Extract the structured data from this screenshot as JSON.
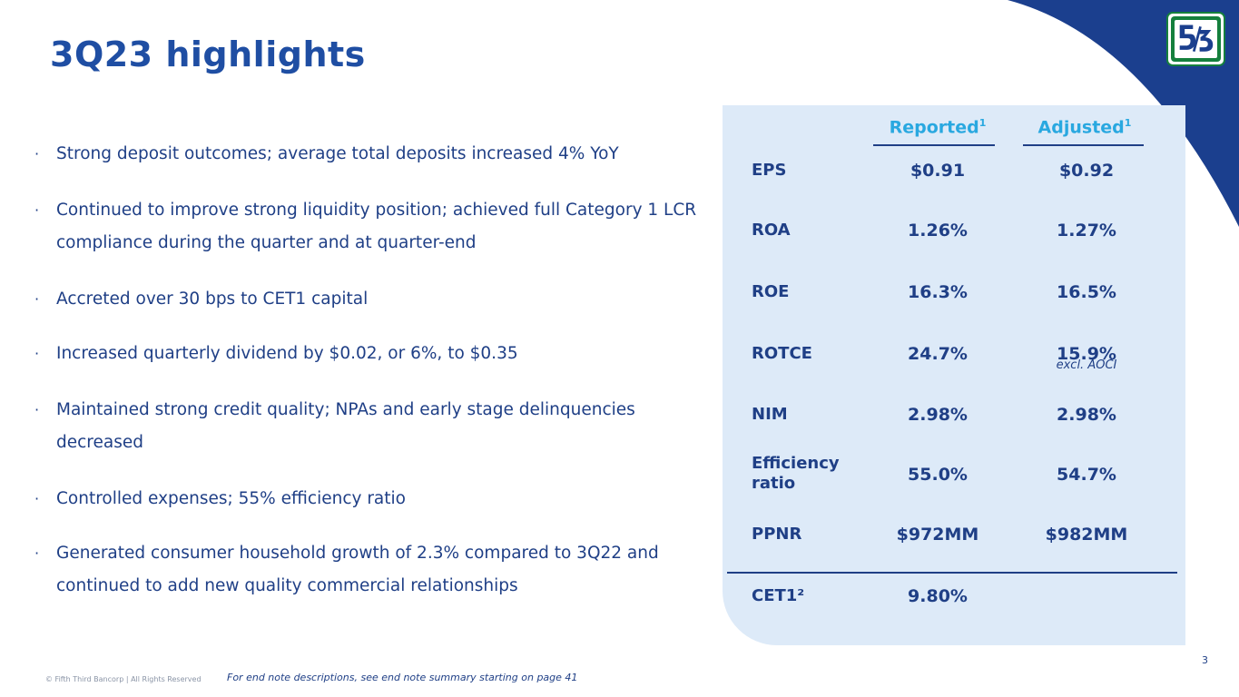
{
  "title": "3Q23 highlights",
  "brand": {
    "navy": "#1b3f8e",
    "green": "#15803d",
    "accent": "#29a8e0",
    "panel": "#ddeaf8"
  },
  "bullets": [
    "Strong deposit outcomes; average total deposits increased 4% YoY",
    "Continued to improve strong liquidity position; achieved full Category 1 LCR compliance during the quarter and at quarter-end",
    "Accreted over 30 bps to CET1 capital",
    "Increased quarterly dividend by $0.02, or 6%, to $0.35",
    "Maintained strong credit quality; NPAs and early stage delinquencies decreased",
    "Controlled expenses; 55% efficiency ratio",
    "Generated consumer household growth of 2.3% compared to 3Q22 and continued to add new quality commercial relationships"
  ],
  "table": {
    "headers": {
      "reported": "Reported",
      "reported_sup": "1",
      "adjusted": "Adjusted",
      "adjusted_sup": "1"
    },
    "rows": [
      {
        "label": "EPS",
        "reported": "$0.91",
        "adjusted": "$0.92"
      },
      {
        "label": "ROA",
        "reported": "1.26%",
        "adjusted": "1.27%"
      },
      {
        "label": "ROE",
        "reported": "16.3%",
        "adjusted": "16.5%"
      },
      {
        "label": "ROTCE",
        "reported": "24.7%",
        "adjusted": "15.9%",
        "adjusted_note": "excl. AOCI"
      },
      {
        "label": "NIM",
        "reported": "2.98%",
        "adjusted": "2.98%"
      },
      {
        "label": "Efficiency ratio",
        "label_line1": "Efficiency",
        "label_line2": "ratio",
        "reported": "55.0%",
        "adjusted": "54.7%"
      },
      {
        "label": "PPNR",
        "reported": "$972MM",
        "adjusted": "$982MM"
      }
    ],
    "cet1": {
      "label": "CET1²",
      "reported": "9.80%"
    }
  },
  "footer": {
    "copyright": "© Fifth Third Bancorp | All Rights Reserved",
    "note": "For end note descriptions, see end note summary starting on page 41",
    "page": "3"
  }
}
